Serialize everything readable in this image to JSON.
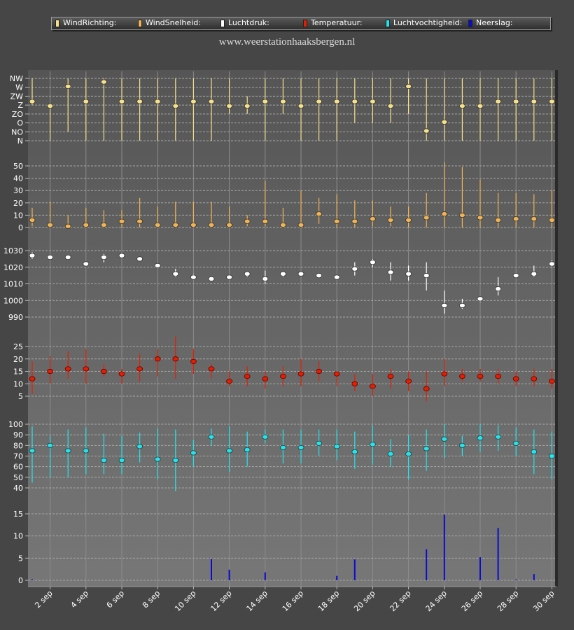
{
  "legend": [
    {
      "label": "WindRichting:",
      "color": "#f5e08c"
    },
    {
      "label": "WindSnelheid:",
      "color": "#f0b454"
    },
    {
      "label": "Luchtdruk:",
      "color": "#ffffff"
    },
    {
      "label": "Temperatuur:",
      "color": "#e41e00"
    },
    {
      "label": "Luchtvochtigheid:",
      "color": "#22e4ec"
    },
    {
      "label": "Neerslag:",
      "color": "#0a0ad0"
    }
  ],
  "site_url": "www.weerstationhaaksbergen.nl",
  "x_tick_labels": [
    "2 sep",
    "4 sep",
    "6 sep",
    "8 sep",
    "10 sep",
    "12 sep",
    "14 sep",
    "16 sep",
    "18 sep",
    "20 sep",
    "22 sep",
    "24 sep",
    "26 sep",
    "28 sep",
    "30 sep"
  ],
  "chart_data": [
    {
      "type": "scatter",
      "name": "WindRichting",
      "color": "#f5e08c",
      "x": [
        1,
        2,
        3,
        4,
        5,
        6,
        7,
        8,
        9,
        10,
        11,
        12,
        13,
        14,
        15,
        16,
        17,
        18,
        19,
        20,
        21,
        22,
        23,
        24,
        25,
        26,
        27,
        28,
        29,
        30
      ],
      "y_ticks": [
        "N",
        "NO",
        "O",
        "ZO",
        "Z",
        "ZW",
        "W",
        "NW"
      ],
      "values": [
        4.4,
        3.9,
        6.1,
        4.4,
        6.6,
        4.4,
        4.4,
        4.4,
        3.9,
        4.4,
        4.4,
        3.9,
        3.9,
        4.4,
        4.4,
        3.9,
        4.4,
        4.4,
        4.4,
        4.4,
        3.9,
        6.1,
        1.1,
        2.1,
        3.9,
        3.9,
        4.4,
        4.4,
        4.4,
        4.4
      ],
      "low": [
        4,
        0,
        1,
        0,
        0,
        0,
        0,
        0,
        0,
        0,
        0,
        3,
        3,
        0,
        3,
        0,
        0,
        0,
        2,
        2,
        2,
        3,
        0,
        0,
        0,
        0,
        0,
        0,
        0,
        0
      ],
      "high": [
        7,
        4,
        7,
        7,
        7,
        7,
        7,
        7,
        7,
        7,
        7,
        7,
        5,
        7,
        7,
        7,
        7,
        7,
        7,
        7,
        7,
        7,
        7,
        7,
        7,
        7,
        7,
        7,
        7,
        7
      ],
      "ylim": [
        0,
        7
      ]
    },
    {
      "type": "scatter",
      "name": "WindSnelheid",
      "color": "#f0b454",
      "x": [
        1,
        2,
        3,
        4,
        5,
        6,
        7,
        8,
        9,
        10,
        11,
        12,
        13,
        14,
        15,
        16,
        17,
        18,
        19,
        20,
        21,
        22,
        23,
        24,
        25,
        26,
        27,
        28,
        29,
        30
      ],
      "y_ticks": [
        0,
        10,
        20,
        30,
        40,
        50
      ],
      "values": [
        6,
        2,
        1,
        2,
        2,
        5,
        5,
        2,
        2,
        2,
        2,
        2,
        5,
        5,
        2,
        2,
        11,
        5,
        5,
        7,
        6,
        6,
        8,
        11,
        10,
        8,
        6,
        7,
        7,
        6
      ],
      "low": [
        1,
        0,
        0,
        0,
        0,
        0,
        0,
        0,
        0,
        0,
        0,
        0,
        1,
        1,
        0,
        0,
        3,
        0,
        0,
        1,
        1,
        0,
        0,
        0,
        0,
        0,
        0,
        0,
        0,
        0
      ],
      "high": [
        16,
        21,
        10,
        16,
        14,
        14,
        24,
        17,
        21,
        21,
        21,
        17,
        10,
        38,
        16,
        30,
        24,
        27,
        22,
        22,
        17,
        17,
        28,
        53,
        49,
        39,
        28,
        28,
        27,
        30
      ],
      "ylim": [
        0,
        55
      ]
    },
    {
      "type": "scatter",
      "name": "Luchtdruk",
      "color": "#ffffff",
      "x": [
        1,
        2,
        3,
        4,
        5,
        6,
        7,
        8,
        9,
        10,
        11,
        12,
        13,
        14,
        15,
        16,
        17,
        18,
        19,
        20,
        21,
        22,
        23,
        24,
        25,
        26,
        27,
        28,
        29,
        30
      ],
      "y_ticks": [
        990,
        1000,
        1010,
        1020,
        1030
      ],
      "values": [
        1027,
        1026,
        1026,
        1022,
        1026,
        1027,
        1025,
        1021,
        1016,
        1014,
        1013,
        1014,
        1016,
        1013,
        1016,
        1016,
        1015,
        1014,
        1019,
        1023,
        1017,
        1016,
        1015,
        997,
        997,
        1001,
        1007,
        1015,
        1016,
        1022
      ],
      "low": [
        1025,
        1025,
        1025,
        1021,
        1023,
        1026,
        1024,
        1020,
        1014,
        1013,
        1012,
        1013,
        1014,
        1010,
        1014,
        1015,
        1014,
        1013,
        1015,
        1020,
        1012,
        1012,
        1006,
        992,
        995,
        999,
        1003,
        1014,
        1014,
        1020
      ],
      "high": [
        1029,
        1027,
        1027,
        1023,
        1028,
        1028,
        1026,
        1022,
        1019,
        1016,
        1014,
        1015,
        1017,
        1018,
        1017,
        1017,
        1016,
        1015,
        1023,
        1025,
        1023,
        1021,
        1023,
        1006,
        1001,
        1002,
        1014,
        1016,
        1021,
        1024
      ],
      "ylim": [
        985,
        1035
      ]
    },
    {
      "type": "scatter",
      "name": "Temperatuur",
      "color": "#e41e00",
      "x": [
        1,
        2,
        3,
        4,
        5,
        6,
        7,
        8,
        9,
        10,
        11,
        12,
        13,
        14,
        15,
        16,
        17,
        18,
        19,
        20,
        21,
        22,
        23,
        24,
        25,
        26,
        27,
        28,
        29,
        30
      ],
      "y_ticks": [
        5,
        10,
        15,
        20,
        25
      ],
      "values": [
        12,
        15,
        16,
        16,
        15,
        14,
        16,
        20,
        20,
        19,
        16,
        11,
        13,
        12,
        13,
        14,
        15,
        14,
        10,
        9,
        13,
        11,
        8,
        14,
        13,
        13,
        13,
        12,
        12,
        11
      ],
      "low": [
        6,
        10,
        12,
        10,
        13,
        10,
        11,
        13,
        12,
        14,
        12,
        9,
        9,
        8,
        9,
        9,
        11,
        9,
        7,
        5,
        8,
        7,
        3,
        9,
        11,
        11,
        10,
        9,
        9,
        8
      ],
      "high": [
        19,
        21,
        23,
        24,
        18,
        16,
        22,
        24,
        29,
        24,
        18,
        15,
        17,
        15,
        17,
        20,
        19,
        15,
        14,
        14,
        16,
        15,
        15,
        20,
        16,
        16,
        16,
        15,
        16,
        16
      ],
      "ylim": [
        0,
        30
      ]
    },
    {
      "type": "scatter",
      "name": "Luchtvochtigheid",
      "color": "#22e4ec",
      "x": [
        1,
        2,
        3,
        4,
        5,
        6,
        7,
        8,
        9,
        10,
        11,
        12,
        13,
        14,
        15,
        16,
        17,
        18,
        19,
        20,
        21,
        22,
        23,
        24,
        25,
        26,
        27,
        28,
        29,
        30
      ],
      "y_ticks": [
        40,
        50,
        60,
        70,
        80,
        90,
        100
      ],
      "values": [
        75,
        80,
        75,
        75,
        66,
        66,
        79,
        67,
        66,
        73,
        88,
        75,
        76,
        88,
        78,
        78,
        82,
        79,
        74,
        81,
        72,
        72,
        77,
        86,
        80,
        87,
        88,
        82,
        74,
        70
      ],
      "low": [
        45,
        50,
        50,
        53,
        53,
        53,
        64,
        48,
        37,
        60,
        80,
        55,
        60,
        82,
        63,
        63,
        70,
        66,
        58,
        62,
        60,
        48,
        56,
        68,
        70,
        74,
        75,
        70,
        53,
        48
      ],
      "high": [
        98,
        89,
        95,
        97,
        91,
        89,
        92,
        96,
        95,
        85,
        96,
        98,
        93,
        95,
        95,
        95,
        95,
        95,
        93,
        99,
        86,
        90,
        95,
        100,
        89,
        100,
        99,
        97,
        95,
        93
      ],
      "ylim": [
        30,
        100
      ]
    },
    {
      "type": "bar",
      "name": "Neerslag",
      "color": "#0a0ad0",
      "x": [
        1,
        2,
        3,
        4,
        5,
        6,
        7,
        8,
        9,
        10,
        11,
        12,
        13,
        14,
        15,
        16,
        17,
        18,
        19,
        20,
        21,
        22,
        23,
        24,
        25,
        26,
        27,
        28,
        29,
        30
      ],
      "y_ticks": [
        0,
        5,
        10,
        15
      ],
      "values": [
        0.2,
        0,
        0,
        0,
        0,
        0,
        0,
        0,
        0,
        0,
        4.8,
        2.4,
        0,
        1.8,
        0,
        0,
        0,
        1.0,
        4.7,
        0,
        0,
        0,
        7.0,
        14.8,
        0,
        5.2,
        11.8,
        0.2,
        1.4,
        0
      ],
      "ylim": [
        0,
        17
      ]
    }
  ]
}
